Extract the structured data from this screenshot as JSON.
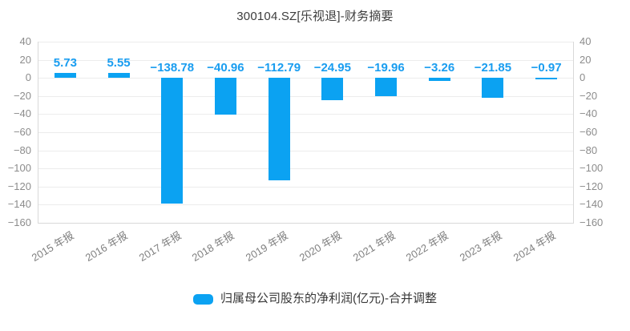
{
  "title": "300104.SZ[乐视退]-财务摘要",
  "chart_data": {
    "type": "bar",
    "title": "300104.SZ[乐视退]-财务摘要",
    "categories": [
      "2015 年报",
      "2016 年报",
      "2017 年报",
      "2018 年报",
      "2019 年报",
      "2020 年报",
      "2021 年报",
      "2022 年报",
      "2023 年报",
      "2024 年报"
    ],
    "series": [
      {
        "name": "归属母公司股东的净利润(亿元)-合并调整",
        "values": [
          5.73,
          5.55,
          -138.78,
          -40.96,
          -112.79,
          -24.95,
          -19.96,
          -3.26,
          -21.85,
          -0.97
        ]
      }
    ],
    "value_labels": [
      "5.73",
      "5.55",
      "−138.78",
      "−40.96",
      "−112.79",
      "−24.95",
      "−19.96",
      "−3.26",
      "−21.85",
      "−0.97"
    ],
    "xlabel": "",
    "ylabel": "",
    "ylim": [
      -160,
      40
    ],
    "y_ticks": [
      40,
      20,
      0,
      -20,
      -40,
      -60,
      -80,
      -100,
      -120,
      -140,
      -160
    ],
    "y_tick_labels": [
      "40",
      "20",
      "0",
      "−20",
      "−40",
      "−60",
      "−80",
      "−100",
      "−120",
      "−140",
      "−160"
    ],
    "grid": true,
    "dual_y_axis": true,
    "legend_position": "bottom",
    "x_label_rotation": -31
  },
  "legend": {
    "label": "归属母公司股东的净利润(亿元)-合并调整"
  },
  "colors": {
    "bar": "#0ba2f2",
    "value_label": "#199df0",
    "axis_label": "#8c8c8c",
    "x_label": "#7f7f7f",
    "grid": "#ececec",
    "axis_border": "#d9d9d9",
    "title": "#3d3d3d",
    "legend_text": "#383838",
    "background": "#ffffff"
  }
}
